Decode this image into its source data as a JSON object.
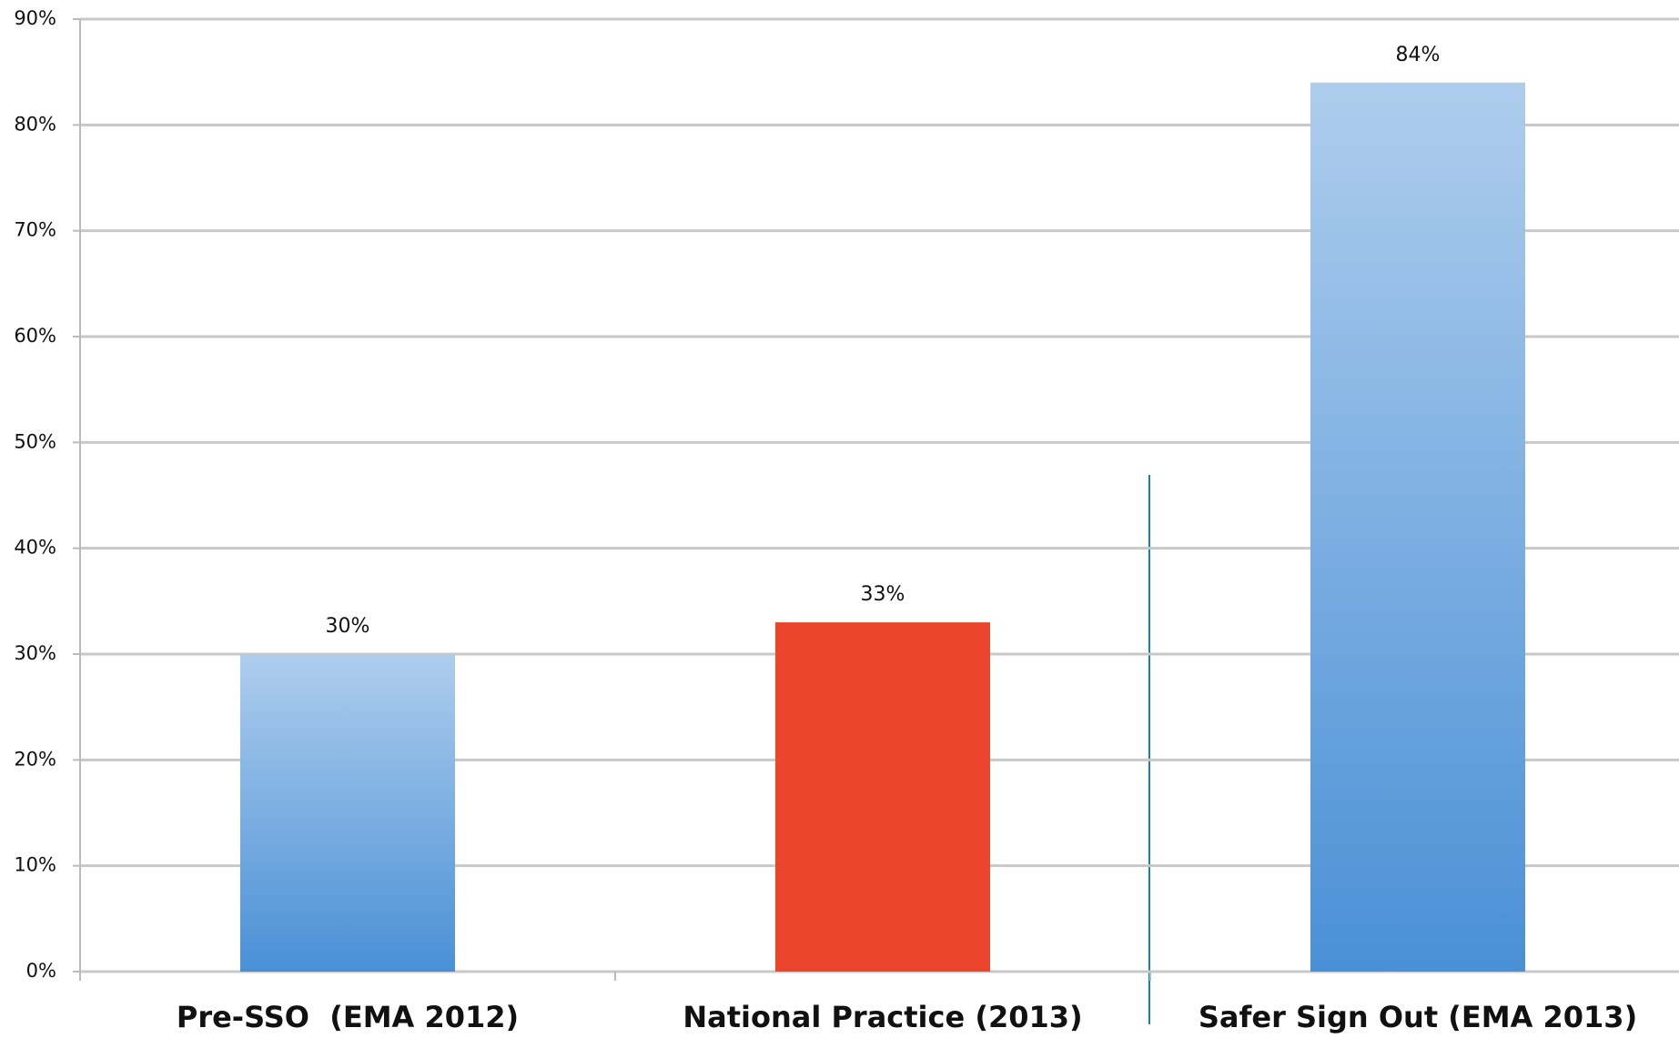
{
  "chart_data": {
    "type": "bar",
    "categories": [
      "Pre-SSO  (EMA 2012)",
      "National Practice (2013)",
      "Safer Sign Out (EMA 2013)"
    ],
    "values": [
      30,
      33,
      84
    ],
    "value_labels": [
      "30%",
      "33%",
      "84%"
    ],
    "colors": [
      "#4a90d6",
      "#ec452e",
      "#4a90d6"
    ],
    "gradient": [
      true,
      false,
      true
    ],
    "ylim": [
      0,
      90
    ],
    "yticks": [
      {
        "value": 0,
        "label": "0%"
      },
      {
        "value": 10,
        "label": "10%"
      },
      {
        "value": 20,
        "label": "20%"
      },
      {
        "value": 30,
        "label": "30%"
      },
      {
        "value": 40,
        "label": "40%"
      },
      {
        "value": 50,
        "label": "50%"
      },
      {
        "value": 60,
        "label": "60%"
      },
      {
        "value": 70,
        "label": "70%"
      },
      {
        "value": 80,
        "label": "80%"
      },
      {
        "value": 90,
        "label": "90%"
      }
    ],
    "grid": true
  }
}
